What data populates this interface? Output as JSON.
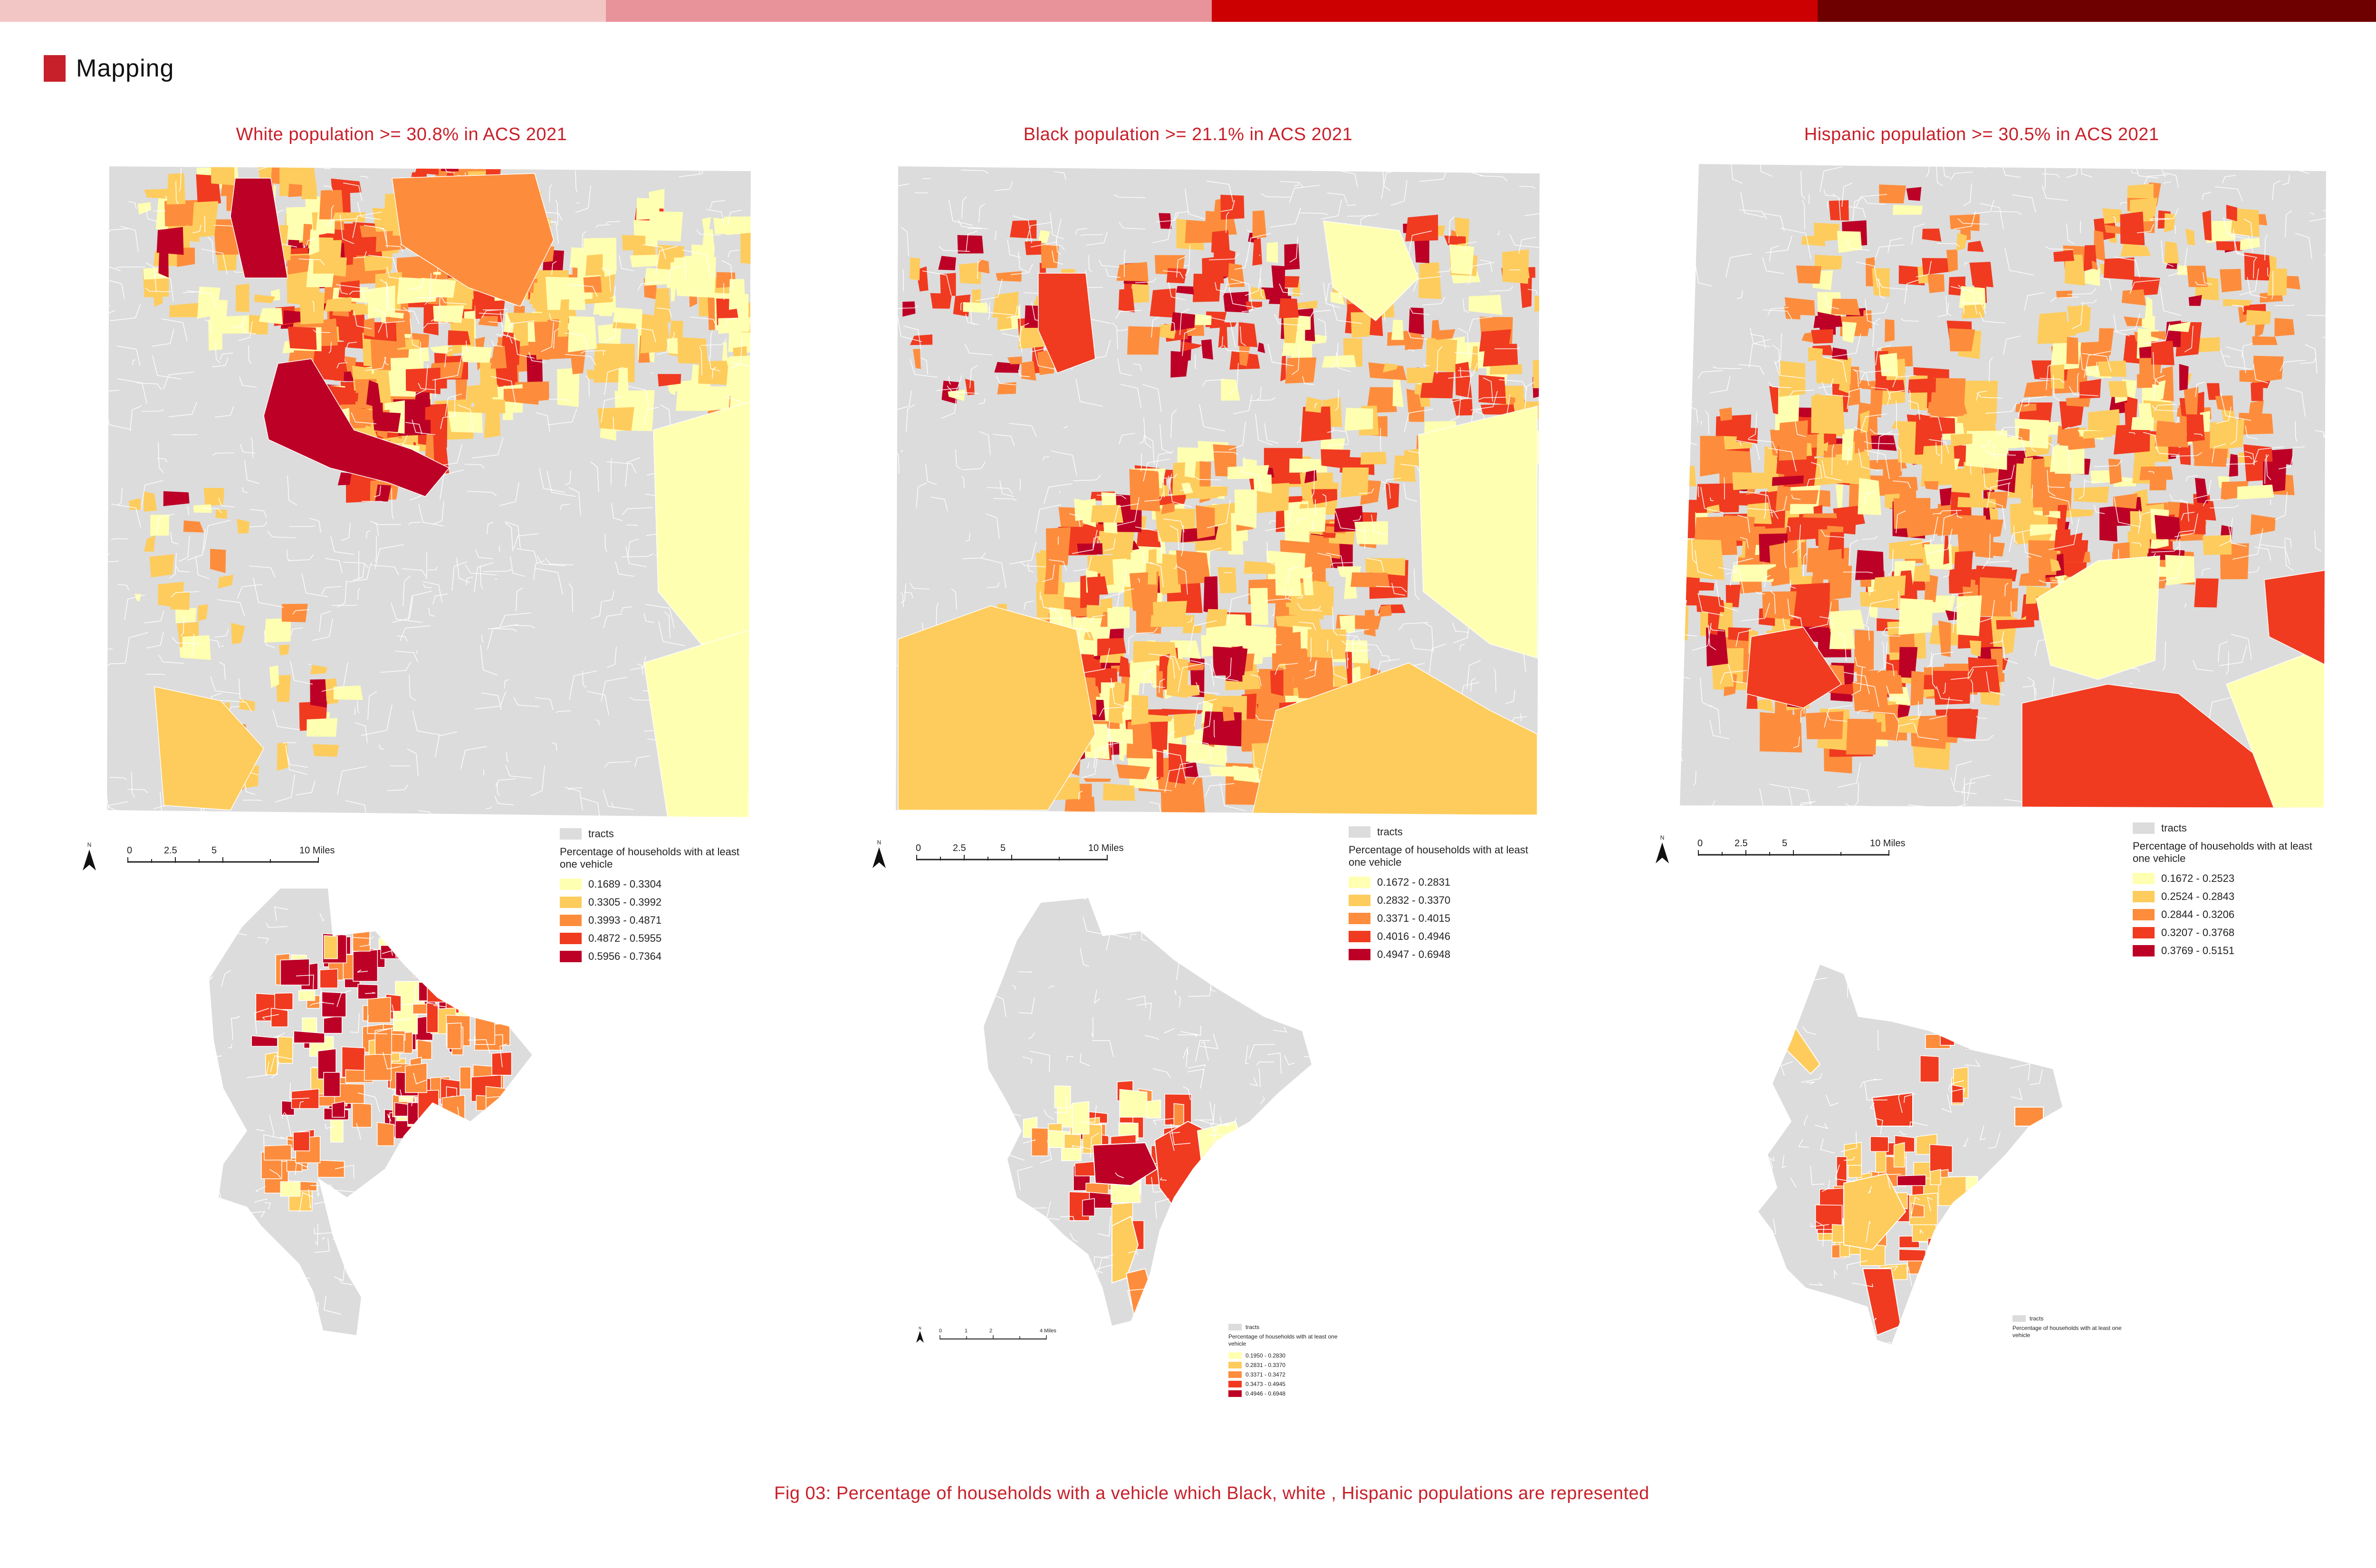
{
  "colors": {
    "accent": "#c8202a",
    "top_bar": [
      "#f3c6c6",
      "#e8939a",
      "#cc0000",
      "#6e0000"
    ],
    "tracts": "#dcdcdc",
    "tract_lines": "#ffffff",
    "class_1": "#ffffb2",
    "class_2": "#fecc5c",
    "class_3": "#fd8d3c",
    "class_4": "#f03b20",
    "class_5": "#bd0026"
  },
  "section": {
    "title": "Mapping"
  },
  "panels": [
    {
      "title": "White population >=  30.8% in ACS 2021",
      "scale": {
        "ticks": [
          "0",
          "2.5",
          "5",
          "10 Miles"
        ]
      },
      "legend": {
        "tracts_label": "tracts",
        "title": "Percentage of households with at least one vehicle",
        "classes": [
          "0.1689 - 0.3304",
          "0.3305 - 0.3992",
          "0.3993 - 0.4871",
          "0.4872 - 0.5955",
          "0.5956 - 0.7364"
        ]
      }
    },
    {
      "title": "Black population >=  21.1% in ACS 2021",
      "scale": {
        "ticks": [
          "0",
          "2.5",
          "5",
          "10 Miles"
        ]
      },
      "legend": {
        "tracts_label": "tracts",
        "title": "Percentage of households with at least one vehicle",
        "classes": [
          "0.1672 - 0.2831",
          "0.2832 - 0.3370",
          "0.3371 - 0.4015",
          "0.4016 - 0.4946",
          "0.4947 - 0.6948"
        ]
      },
      "inset_scale": {
        "ticks": [
          "0",
          "1",
          "2",
          "4 Miles"
        ]
      },
      "inset_legend": {
        "tracts_label": "tracts",
        "title": "Percentage of households with at least one vehicle",
        "classes": [
          "0.1950 - 0.2830",
          "0.2831 - 0.3370",
          "0.3371 - 0.3472",
          "0.3473 - 0.4945",
          "0.4946 - 0.6948"
        ]
      }
    },
    {
      "title": "Hispanic population >=  30.5% in ACS 2021",
      "scale": {
        "ticks": [
          "0",
          "2.5",
          "5",
          "10 Miles"
        ]
      },
      "legend": {
        "tracts_label": "tracts",
        "title": "Percentage of households with at least one vehicle",
        "classes": [
          "0.1672 - 0.2523",
          "0.2524 - 0.2843",
          "0.2844 - 0.3206",
          "0.3207 - 0.3768",
          "0.3769 - 0.5151"
        ]
      },
      "inset_legend": {
        "tracts_label": "tracts",
        "title": "Percentage of households with at least one vehicle"
      }
    }
  ],
  "caption": "Fig 03: Percentage of households with a vehicle which Black, white , Hispanic populations are represented"
}
